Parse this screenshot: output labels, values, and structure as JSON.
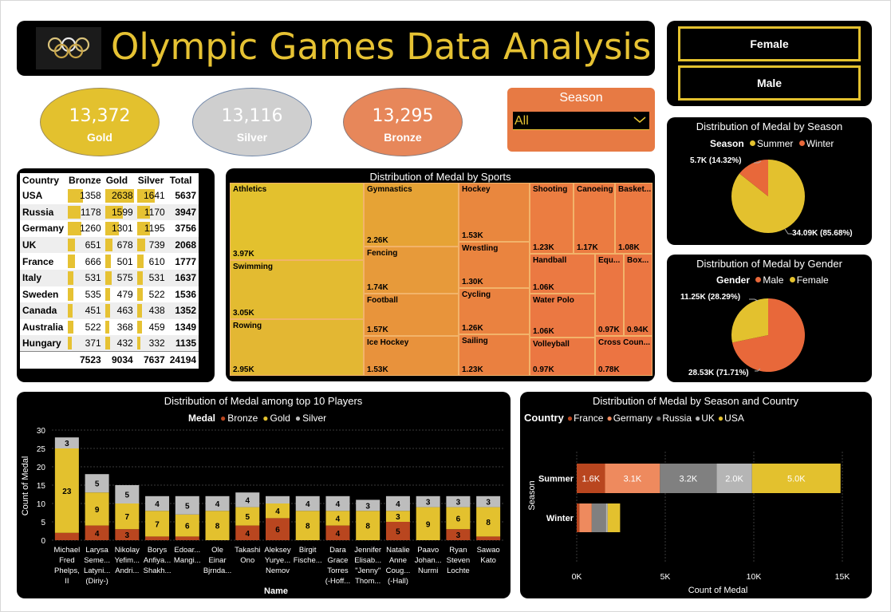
{
  "title": "Olympic Games Data Analysis",
  "logo": {
    "icon": "olympic-rings-logo"
  },
  "gender_buttons": [
    "Female",
    "Male"
  ],
  "kpis": [
    {
      "value": "13,372",
      "label": "Gold",
      "color": "#e3c12e"
    },
    {
      "value": "13,116",
      "label": "Silver",
      "color": "#cfcfcf"
    },
    {
      "value": "13,295",
      "label": "Bronze",
      "color": "#e7875a"
    }
  ],
  "season_slicer": {
    "label": "Season",
    "value": "All"
  },
  "medal_table": {
    "headers": [
      "Country",
      "Bronze",
      "Gold",
      "Silver",
      "Total"
    ],
    "rows": [
      [
        "USA",
        "1358",
        "2638",
        "1641",
        "5637"
      ],
      [
        "Russia",
        "1178",
        "1599",
        "1170",
        "3947"
      ],
      [
        "Germany",
        "1260",
        "1301",
        "1195",
        "3756"
      ],
      [
        "UK",
        "651",
        "678",
        "739",
        "2068"
      ],
      [
        "France",
        "666",
        "501",
        "610",
        "1777"
      ],
      [
        "Italy",
        "531",
        "575",
        "531",
        "1637"
      ],
      [
        "Sweden",
        "535",
        "479",
        "522",
        "1536"
      ],
      [
        "Canada",
        "451",
        "463",
        "438",
        "1352"
      ],
      [
        "Australia",
        "522",
        "368",
        "459",
        "1349"
      ],
      [
        "Hungary",
        "371",
        "432",
        "332",
        "1135"
      ]
    ],
    "totals": [
      "",
      "7523",
      "9034",
      "7637",
      "24194"
    ]
  },
  "treemap": {
    "title": "Distribution of Medal by Sports",
    "items": [
      {
        "name": "Athletics",
        "value": "3.97K",
        "color": "#e3c12e"
      },
      {
        "name": "Swimming",
        "value": "3.05K",
        "color": "#e3bb31"
      },
      {
        "name": "Rowing",
        "value": "2.95K",
        "color": "#e3b733"
      },
      {
        "name": "Gymnastics",
        "value": "2.26K",
        "color": "#e6a335"
      },
      {
        "name": "Fencing",
        "value": "1.74K",
        "color": "#e79a3a"
      },
      {
        "name": "Football",
        "value": "1.57K",
        "color": "#e8943b"
      },
      {
        "name": "Ice Hockey",
        "value": "1.53K",
        "color": "#e8923c"
      },
      {
        "name": "Hockey",
        "value": "1.53K",
        "color": "#e9873e"
      },
      {
        "name": "Wrestling",
        "value": "1.30K",
        "color": "#ea843f"
      },
      {
        "name": "Cycling",
        "value": "1.26K",
        "color": "#ea8240"
      },
      {
        "name": "Sailing",
        "value": "1.23K",
        "color": "#ea8040"
      },
      {
        "name": "Shooting",
        "value": "1.23K",
        "color": "#eb7d41"
      },
      {
        "name": "Canoeing",
        "value": "1.17K",
        "color": "#eb7b41"
      },
      {
        "name": "Basket...",
        "value": "1.08K",
        "color": "#eb7941"
      },
      {
        "name": "Handball",
        "value": "1.06K",
        "color": "#eb7942"
      },
      {
        "name": "Water Polo",
        "value": "1.06K",
        "color": "#eb7842"
      },
      {
        "name": "Volleyball",
        "value": "0.97K",
        "color": "#eb7742"
      },
      {
        "name": "Equ...",
        "value": "0.97K",
        "color": "#eb7642"
      },
      {
        "name": "Box...",
        "value": "0.94K",
        "color": "#eb7642"
      },
      {
        "name": "Cross Coun...",
        "value": "0.78K",
        "color": "#ec7442"
      }
    ]
  },
  "pie_season": {
    "title": "Distribution of Medal by Season",
    "legend_title": "Season",
    "slices": [
      {
        "name": "Summer",
        "value": 34090,
        "label": "34.09K (85.68%)",
        "color": "#e3c12e"
      },
      {
        "name": "Winter",
        "value": 5700,
        "label": "5.7K (14.32%)",
        "color": "#e8683a"
      }
    ]
  },
  "pie_gender": {
    "title": "Distribution of Medal by Gender",
    "legend_title": "Gender",
    "slices": [
      {
        "name": "Male",
        "value": 28530,
        "label": "28.53K (71.71%)",
        "color": "#e8683a"
      },
      {
        "name": "Female",
        "value": 11250,
        "label": "11.25K (28.29%)",
        "color": "#e3c12e"
      }
    ]
  },
  "chart_data": [
    {
      "type": "bar",
      "stacked": true,
      "title": "Distribution of Medal among top 10 Players",
      "legend_title": "Medal",
      "xlabel": "Name",
      "ylabel": "Count of Medal",
      "ylim": [
        0,
        30
      ],
      "yticks": [
        0,
        5,
        10,
        15,
        20,
        25,
        30
      ],
      "grid": true,
      "categories": [
        [
          "Michael",
          "Fred",
          "Phelps,",
          "II"
        ],
        [
          "Larysa",
          "Seme...",
          "Latyni...",
          "(Diriy-)"
        ],
        [
          "Nikolay",
          "Yefim...",
          "Andri..."
        ],
        [
          "Borys",
          "Anfiya...",
          "Shakh..."
        ],
        [
          "Edoar...",
          "Mangi..."
        ],
        [
          "Ole",
          "Einar",
          "Bjrnda..."
        ],
        [
          "Takashi",
          "Ono"
        ],
        [
          "Aleksey",
          "Yurye...",
          "Nemov"
        ],
        [
          "Birgit",
          "Fische..."
        ],
        [
          "Dara",
          "Grace",
          "Torres",
          "(-Hoff..."
        ],
        [
          "Jennifer",
          "Elisab...",
          "\"Jenny\"",
          "Thom..."
        ],
        [
          "Natalie",
          "Anne",
          "Coug...",
          "(-Hall)"
        ],
        [
          "Paavo",
          "Johan...",
          "Nurmi"
        ],
        [
          "Ryan",
          "Steven",
          "Lochte"
        ],
        [
          "Sawao",
          "Kato"
        ]
      ],
      "series": [
        {
          "name": "Bronze",
          "color": "#b9461f",
          "values": [
            2,
            4,
            3,
            1,
            1,
            0,
            4,
            6,
            0,
            4,
            0,
            5,
            0,
            3,
            1
          ],
          "labels": [
            "",
            "4",
            "3",
            "",
            "",
            "",
            "4",
            "6",
            "",
            "4",
            "",
            "5",
            "",
            "3",
            ""
          ]
        },
        {
          "name": "Gold",
          "color": "#e3c12e",
          "values": [
            23,
            9,
            7,
            7,
            6,
            8,
            5,
            4,
            8,
            4,
            8,
            3,
            9,
            6,
            8
          ],
          "labels": [
            "23",
            "9",
            "7",
            "7",
            "6",
            "8",
            "5",
            "4",
            "8",
            "4",
            "8",
            "3",
            "9",
            "6",
            "8"
          ]
        },
        {
          "name": "Silver",
          "color": "#bdbdbd",
          "values": [
            3,
            5,
            5,
            4,
            5,
            4,
            4,
            2,
            4,
            4,
            3,
            4,
            3,
            3,
            3
          ],
          "labels": [
            "3",
            "5",
            "5",
            "4",
            "5",
            "4",
            "4",
            "",
            "4",
            "4",
            "3",
            "4",
            "3",
            "3",
            "3"
          ]
        }
      ]
    },
    {
      "type": "bar",
      "orientation": "horizontal",
      "stacked": true,
      "title": "Distribution of Medal by Season and Country",
      "legend_title": "Country",
      "xlabel": "Count of Medal",
      "ylabel": "Season",
      "xlim": [
        0,
        15000
      ],
      "xticks": [
        "0K",
        "5K",
        "10K",
        "15K"
      ],
      "categories": [
        "Summer",
        "Winter"
      ],
      "series": [
        {
          "name": "France",
          "color": "#b9461f",
          "values": [
            1600,
            150
          ],
          "labels": [
            "1.6K",
            ""
          ]
        },
        {
          "name": "Germany",
          "color": "#ee8a5e",
          "values": [
            3100,
            700
          ],
          "labels": [
            "3.1K",
            ""
          ]
        },
        {
          "name": "Russia",
          "color": "#808080",
          "values": [
            3200,
            800
          ],
          "labels": [
            "3.2K",
            ""
          ]
        },
        {
          "name": "UK",
          "color": "#b5b5b5",
          "values": [
            2000,
            100
          ],
          "labels": [
            "2.0K",
            ""
          ]
        },
        {
          "name": "USA",
          "color": "#e3c12e",
          "values": [
            5000,
            700
          ],
          "labels": [
            "5.0K",
            ""
          ]
        }
      ]
    }
  ]
}
